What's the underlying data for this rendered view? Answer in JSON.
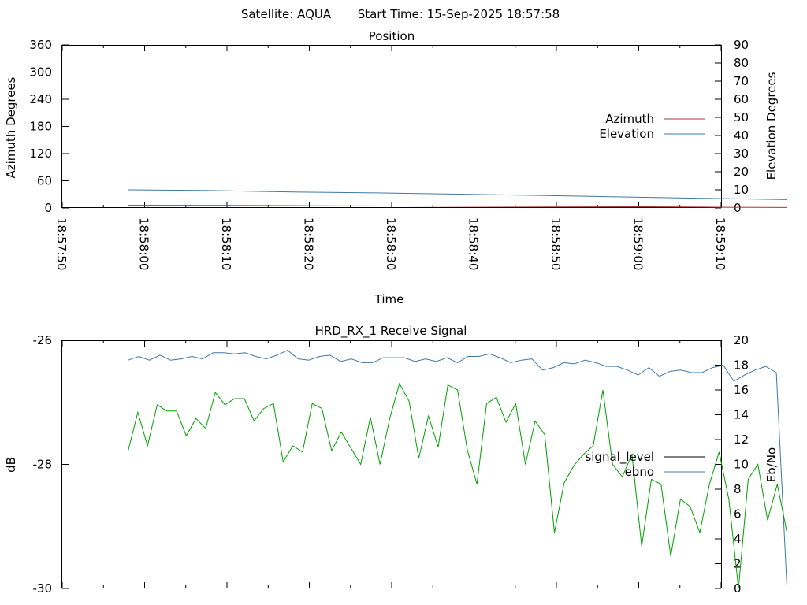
{
  "page": {
    "satellite_label": "Satellite: AQUA",
    "start_time_label": "Start Time: 15-Sep-2025 18:57:58"
  },
  "chart_data": [
    {
      "type": "line",
      "title": "Position",
      "xlabel": "Time",
      "ylabel_left": "Azimuth Degrees",
      "ylabel_right": "Elevation Degrees",
      "x_tick_labels": [
        "18:57:50",
        "18:58:00",
        "18:58:10",
        "18:58:20",
        "18:58:30",
        "18:58:40",
        "18:58:50",
        "18:59:00",
        "18:59:10"
      ],
      "x_range_seconds_after_18_57_50": [
        0,
        80
      ],
      "ylim_left": [
        0,
        360
      ],
      "yticks_left": [
        0,
        60,
        120,
        180,
        240,
        300,
        360
      ],
      "ylim_right": [
        0,
        90
      ],
      "yticks_right": [
        0,
        10,
        20,
        30,
        40,
        50,
        60,
        70,
        80,
        90
      ],
      "legend_position": "right",
      "series": [
        {
          "name": "Azimuth",
          "axis": "left",
          "color": "#b03030",
          "x": [
            8,
            20,
            30,
            40,
            50,
            60,
            70,
            75,
            80,
            85,
            88
          ],
          "y": [
            6,
            5.5,
            4.8,
            4.3,
            3.7,
            3.1,
            2.6,
            2.3,
            1.6,
            1.2,
            1.0
          ]
        },
        {
          "name": "Elevation",
          "axis": "right",
          "color": "#3f78a8",
          "x": [
            8,
            18,
            28,
            38,
            48,
            58,
            68,
            78,
            88
          ],
          "y": [
            10,
            9.6,
            8.8,
            8.3,
            7.6,
            6.9,
            6.1,
            5.3,
            4.6
          ]
        }
      ]
    },
    {
      "type": "line",
      "title": "HRD_RX_1 Receive Signal",
      "ylabel_left": "dB",
      "ylabel_right": "Eb/No",
      "ylim_left": [
        -30,
        -26
      ],
      "yticks_left": [
        -30,
        -28,
        -26
      ],
      "ylim_right": [
        0,
        20
      ],
      "yticks_right": [
        0,
        2,
        4,
        6,
        8,
        10,
        12,
        14,
        16,
        18,
        20
      ],
      "legend_position": "right",
      "series": [
        {
          "name": "signal_level",
          "axis": "left",
          "color": "#000000",
          "y": []
        },
        {
          "name": "ebno",
          "axis": "right",
          "color": "#3f78a8",
          "y": [
            18.4,
            18.7,
            18.4,
            18.8,
            18.4,
            18.5,
            18.7,
            18.5,
            19.0,
            19.0,
            18.9,
            19.0,
            18.7,
            18.5,
            18.8,
            19.2,
            18.5,
            18.4,
            18.7,
            18.8,
            18.3,
            18.5,
            18.2,
            18.2,
            18.6,
            18.6,
            18.6,
            18.3,
            18.5,
            18.3,
            18.6,
            18.2,
            18.7,
            18.7,
            18.9,
            18.6,
            18.2,
            18.4,
            18.5,
            17.6,
            17.8,
            18.2,
            18.1,
            18.4,
            18.2,
            17.9,
            17.9,
            17.6,
            17.2,
            17.8,
            17.1,
            17.5,
            17.6,
            17.4,
            17.4,
            17.8,
            18.0,
            16.7,
            17.2,
            17.6,
            17.9,
            17.4,
            0.0
          ]
        },
        {
          "color": "#00a000",
          "axis": "right",
          "y": [
            11.1,
            14.2,
            11.5,
            14.8,
            14.3,
            14.3,
            12.3,
            13.7,
            12.9,
            15.8,
            14.8,
            15.3,
            15.3,
            13.5,
            14.5,
            14.9,
            10.2,
            11.5,
            11.0,
            14.9,
            14.5,
            11.1,
            12.6,
            11.3,
            10.0,
            13.8,
            10.0,
            13.7,
            16.5,
            15.1,
            10.5,
            13.9,
            11.4,
            16.4,
            16.0,
            11.2,
            8.4,
            14.9,
            15.4,
            13.4,
            14.9,
            10.0,
            13.5,
            12.4,
            4.5,
            8.5,
            9.9,
            10.8,
            11.5,
            16.0,
            10.0,
            9.0,
            10.8,
            3.4,
            8.8,
            8.4,
            2.6,
            7.2,
            6.6,
            4.5,
            8.4,
            11.0,
            7.2,
            0.0,
            8.8,
            10.0,
            5.5,
            8.4,
            4.5
          ]
        }
      ]
    }
  ]
}
